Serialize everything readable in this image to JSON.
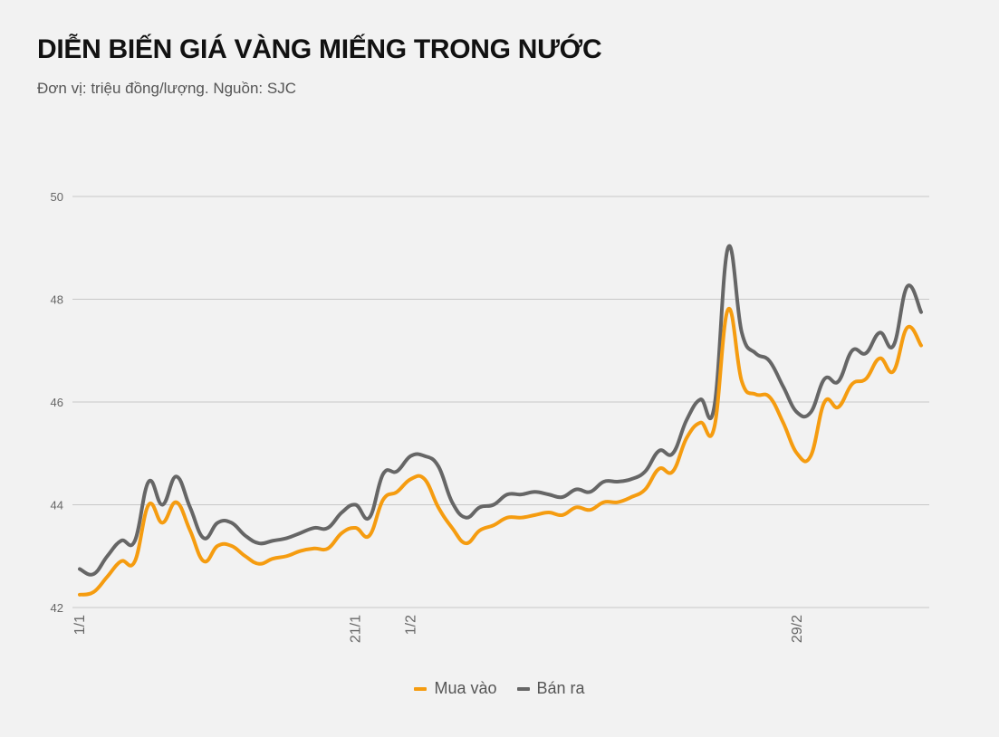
{
  "header": {
    "title": "DIỄN BIẾN GIÁ VÀNG MIẾNG TRONG NƯỚC",
    "subtitle": "Đơn vị: triệu đồng/lượng. Nguồn: SJC"
  },
  "colors": {
    "mua_vao": "#f59c10",
    "ban_ra": "#666666",
    "grid": "#c8c8c8",
    "background": "#f2f2f2"
  },
  "chart_data": {
    "type": "line",
    "title": "DIỄN BIẾN GIÁ VÀNG MIẾNG TRONG NƯỚC",
    "subtitle": "Đơn vị: triệu đồng/lượng. Nguồn: SJC",
    "xlabel": "",
    "ylabel": "",
    "ylim": [
      42,
      50
    ],
    "yticks": [
      42,
      44,
      46,
      48,
      50
    ],
    "grid": true,
    "legend_position": "bottom",
    "x_tick_labels": [
      {
        "index": 0,
        "label": "1/1"
      },
      {
        "index": 20,
        "label": "21/1"
      },
      {
        "index": 24,
        "label": "1/2"
      },
      {
        "index": 52,
        "label": "29/2"
      }
    ],
    "series": [
      {
        "name": "Mua vào",
        "values": [
          42.25,
          42.3,
          42.6,
          42.9,
          42.9,
          44.0,
          43.65,
          44.05,
          43.5,
          42.9,
          43.2,
          43.2,
          43.0,
          42.85,
          42.95,
          43.0,
          43.1,
          43.15,
          43.15,
          43.45,
          43.55,
          43.4,
          44.1,
          44.25,
          44.5,
          44.5,
          43.95,
          43.55,
          43.25,
          43.5,
          43.6,
          43.75,
          43.75,
          43.8,
          43.85,
          43.8,
          43.95,
          43.9,
          44.05,
          44.05,
          44.15,
          44.3,
          44.7,
          44.65,
          45.3,
          45.6,
          45.5,
          47.8,
          46.4,
          46.15,
          46.1,
          45.6,
          45.0,
          44.95,
          46.0,
          45.9,
          46.35,
          46.45,
          46.85,
          46.6,
          47.45,
          47.1
        ]
      },
      {
        "name": "Bán ra",
        "values": [
          42.75,
          42.65,
          43.0,
          43.3,
          43.3,
          44.45,
          44.0,
          44.55,
          43.95,
          43.35,
          43.65,
          43.65,
          43.4,
          43.25,
          43.3,
          43.35,
          43.45,
          43.55,
          43.55,
          43.85,
          44.0,
          43.75,
          44.6,
          44.65,
          44.95,
          44.95,
          44.75,
          44.05,
          43.75,
          43.95,
          44.0,
          44.2,
          44.2,
          44.25,
          44.2,
          44.15,
          44.3,
          44.25,
          44.45,
          44.45,
          44.5,
          44.65,
          45.05,
          45.0,
          45.65,
          46.05,
          45.9,
          49.0,
          47.35,
          46.95,
          46.8,
          46.3,
          45.8,
          45.8,
          46.45,
          46.4,
          47.0,
          46.95,
          47.35,
          47.1,
          48.25,
          47.75
        ]
      }
    ]
  }
}
